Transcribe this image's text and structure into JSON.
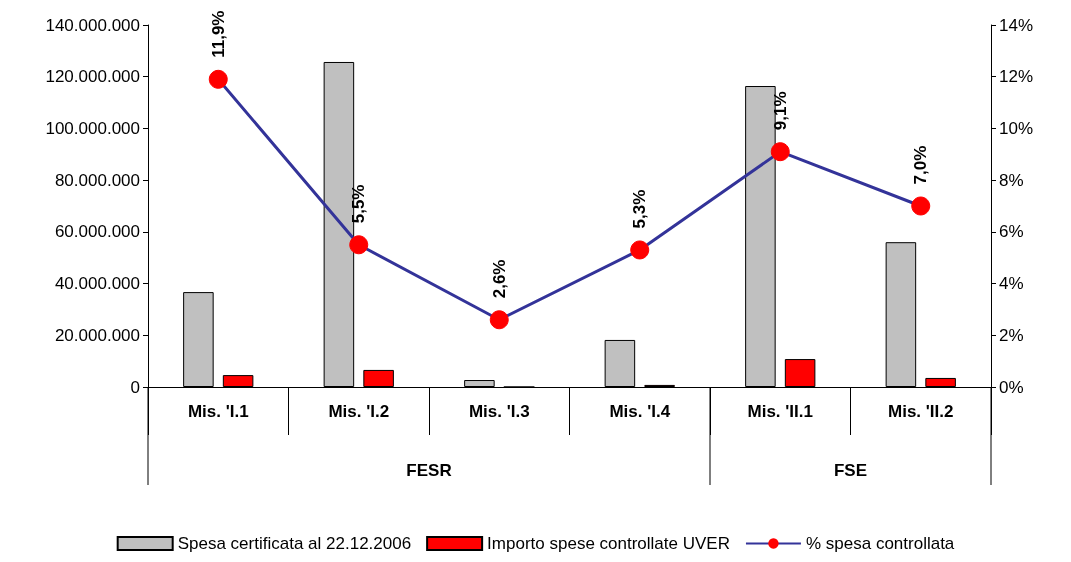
{
  "chart_data": {
    "type": "bar",
    "categories": [
      "Mis. 'I.1",
      "Mis. 'I.2",
      "Mis. 'I.3",
      "Mis. 'I.4",
      "Mis. 'II.1",
      "Mis. 'II.2"
    ],
    "series": [
      {
        "name": "Spesa certificata al 22.12.2006",
        "color": "#c0c0c0",
        "values": [
          36700000,
          125700000,
          2700000,
          18200000,
          116400000,
          56000000
        ]
      },
      {
        "name": "Importo spese controllate UVER",
        "color": "#ff0000",
        "values": [
          4600000,
          6600000,
          0,
          800000,
          10800000,
          3500000
        ]
      },
      {
        "name": "% spesa controllata",
        "type": "line",
        "axis": "y2",
        "color": "#333399",
        "values": [
          11.9,
          5.5,
          2.6,
          5.3,
          9.1,
          7.0
        ],
        "value_labels": [
          "11,9%",
          "5,5%",
          "2,6%",
          "5,3%",
          "9,1%",
          "7,0%"
        ]
      }
    ],
    "ylim": [
      0,
      140000000
    ],
    "yticks": [
      {
        "value": 0,
        "label": "0"
      },
      {
        "value": 20000000,
        "label": "20.000.000"
      },
      {
        "value": 40000000,
        "label": "40.000.000"
      },
      {
        "value": 60000000,
        "label": "60.000.000"
      },
      {
        "value": 80000000,
        "label": "80.000.000"
      },
      {
        "value": 100000000,
        "label": "100.000.000"
      },
      {
        "value": 120000000,
        "label": "120.000.000"
      },
      {
        "value": 140000000,
        "label": "140.000.000"
      }
    ],
    "y2lim": [
      0,
      14
    ],
    "y2ticks": [
      {
        "value": 0,
        "label": "0%"
      },
      {
        "value": 2,
        "label": "2%"
      },
      {
        "value": 4,
        "label": "4%"
      },
      {
        "value": 6,
        "label": "6%"
      },
      {
        "value": 8,
        "label": "8%"
      },
      {
        "value": 10,
        "label": "10%"
      },
      {
        "value": 12,
        "label": "12%"
      },
      {
        "value": 14,
        "label": "14%"
      }
    ],
    "annotations": [
      "FESR",
      "FSE"
    ],
    "legend": "bottom",
    "grid": false,
    "marker": "circle"
  }
}
